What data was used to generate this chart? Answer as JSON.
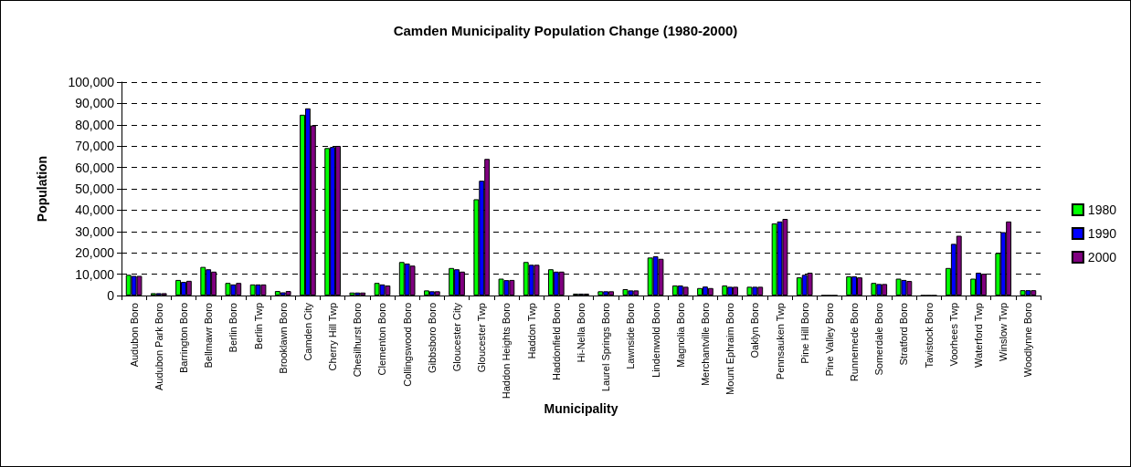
{
  "chart_data": {
    "type": "bar",
    "title": "Camden Municipality Population Change (1980-2000)",
    "xlabel": "Municipality",
    "ylabel": "Population",
    "categories": [
      "Audubon Boro",
      "Audubon Park Boro",
      "Barrington Boro",
      "Bellmawr Boro",
      "Berlin Boro",
      "Berlin Twp",
      "Brooklawn Boro",
      "Camden City",
      "Cherry Hill Twp",
      "Chesilhurst Boro",
      "Clementon Boro",
      "Collingswood Boro",
      "Gibbsboro Boro",
      "Gloucester City",
      "Gloucester Twp",
      "Haddon Heights Boro",
      "Haddon Twp",
      "Haddonfield Boro",
      "Hi-Nella Boro",
      "Laurel Springs Boro",
      "Lawnside Boro",
      "Lindenwold Boro",
      "Magnolia Boro",
      "Merchantville Boro",
      "Mount Ephraim Boro",
      "Oaklyn Boro",
      "Pennsauken Twp",
      "Pine Hill Boro",
      "Pine Valley Boro",
      "Runnemede Boro",
      "Somerdale Boro",
      "Stratford Boro",
      "Tavistock Boro",
      "Voorhees Twp",
      "Waterford Twp",
      "Winslow Twp",
      "Woodlynne Boro"
    ],
    "series": [
      {
        "name": "1980",
        "color": "#00ff00",
        "values": [
          9700,
          1100,
          7300,
          13400,
          5900,
          5200,
          2100,
          84700,
          69100,
          1400,
          5900,
          15700,
          2400,
          12900,
          45100,
          7900,
          15700,
          12300,
          900,
          2000,
          3000,
          17800,
          4700,
          3500,
          4700,
          4100,
          33800,
          8500,
          0,
          9000,
          5900,
          7900,
          0,
          12900,
          7900,
          19900,
          2500
        ]
      },
      {
        "name": "1990",
        "color": "#0000ff",
        "values": [
          9200,
          1100,
          6400,
          12300,
          5200,
          5200,
          1500,
          87700,
          69600,
          1400,
          5200,
          15000,
          2000,
          12300,
          53800,
          7200,
          14400,
          11200,
          900,
          2000,
          2400,
          18400,
          4700,
          4200,
          4100,
          4100,
          34700,
          9700,
          0,
          9000,
          5400,
          7300,
          0,
          24200,
          10700,
          29700,
          2500
        ]
      },
      {
        "name": "2000",
        "color": "#800080",
        "values": [
          9200,
          1100,
          6900,
          11200,
          5900,
          5200,
          2100,
          79700,
          70100,
          1400,
          4700,
          14000,
          2000,
          11200,
          64000,
          7300,
          14400,
          11200,
          900,
          2000,
          2400,
          17200,
          4100,
          3500,
          4100,
          4100,
          35900,
          10700,
          0,
          8500,
          5400,
          6800,
          0,
          28000,
          10200,
          34700,
          2500
        ]
      }
    ],
    "ylim": [
      0,
      100000
    ],
    "yticks": [
      0,
      {
        "value": 10000,
        "label": "10,000"
      },
      {
        "value": 20000,
        "label": "20,000"
      },
      {
        "value": 30000,
        "label": "30,000"
      },
      {
        "value": 40000,
        "label": "40,000"
      },
      {
        "value": 50000,
        "label": "50,000"
      },
      {
        "value": 60000,
        "label": "60,000"
      },
      {
        "value": 70000,
        "label": "70,000"
      },
      {
        "value": 80000,
        "label": "80,000"
      },
      {
        "value": 90000,
        "label": "90,000"
      },
      {
        "value": 100000,
        "label": "100,000"
      }
    ],
    "grid": "y",
    "legend": "right"
  }
}
